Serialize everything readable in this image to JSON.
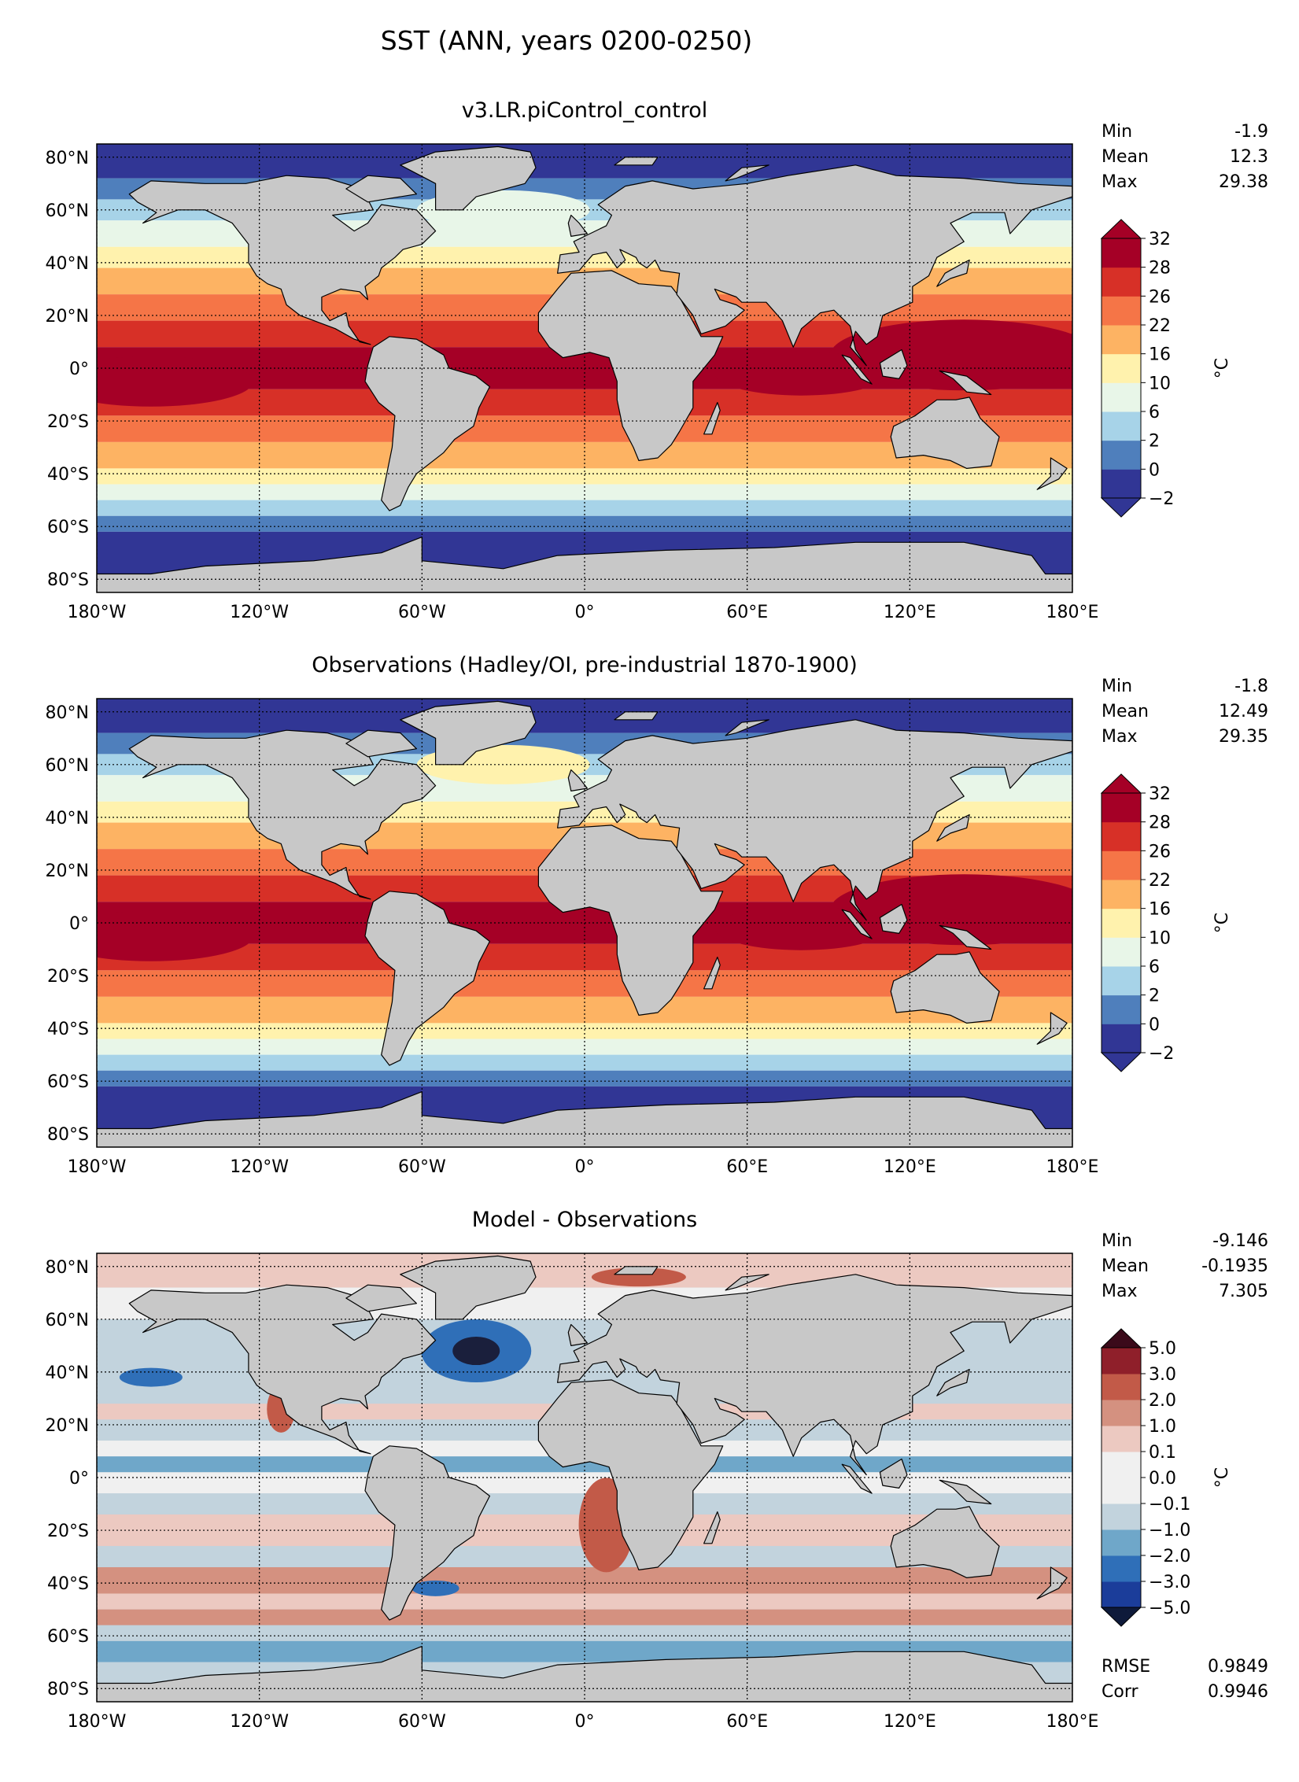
{
  "suptitle": "SST (ANN, years 0200-0250)",
  "axes": {
    "lon_ticks": [
      "180°W",
      "120°W",
      "60°W",
      "0°",
      "60°E",
      "120°E",
      "180°E"
    ],
    "lat_ticks": [
      "80°N",
      "60°N",
      "40°N",
      "20°N",
      "0°",
      "20°S",
      "40°S",
      "60°S",
      "80°S"
    ],
    "lon_values": [
      -180,
      -120,
      -60,
      0,
      60,
      120,
      180
    ],
    "lat_values": [
      80,
      60,
      40,
      20,
      0,
      -20,
      -40,
      -60,
      -80
    ]
  },
  "panels": [
    {
      "title": "v3.LR.piControl_control",
      "stats": [
        {
          "label": "Min",
          "value": "-1.9"
        },
        {
          "label": "Mean",
          "value": "12.3"
        },
        {
          "label": "Max",
          "value": "29.38"
        }
      ],
      "colorbar": {
        "unit": "°C",
        "levels": [
          "−2",
          "0",
          "2",
          "6",
          "10",
          "16",
          "22",
          "26",
          "28",
          "32"
        ],
        "colors": [
          "#313695",
          "#4f7fbc",
          "#a7d3e8",
          "#e8f6e8",
          "#fff2ad",
          "#fdb363",
          "#f57547",
          "#d73027",
          "#a50026"
        ]
      }
    },
    {
      "title": "Observations (Hadley/OI, pre-industrial 1870-1900)",
      "stats": [
        {
          "label": "Min",
          "value": "-1.8"
        },
        {
          "label": "Mean",
          "value": "12.49"
        },
        {
          "label": "Max",
          "value": "29.35"
        }
      ],
      "colorbar": {
        "unit": "°C",
        "levels": [
          "−2",
          "0",
          "2",
          "6",
          "10",
          "16",
          "22",
          "26",
          "28",
          "32"
        ],
        "colors": [
          "#313695",
          "#4f7fbc",
          "#a7d3e8",
          "#e8f6e8",
          "#fff2ad",
          "#fdb363",
          "#f57547",
          "#d73027",
          "#a50026"
        ]
      }
    },
    {
      "title": "Model - Observations",
      "stats": [
        {
          "label": "Min",
          "value": "-9.146"
        },
        {
          "label": "Mean",
          "value": "-0.1935"
        },
        {
          "label": "Max",
          "value": "7.305"
        }
      ],
      "extra_stats": [
        {
          "label": "RMSE",
          "value": "0.9849"
        },
        {
          "label": "Corr",
          "value": "0.9946"
        }
      ],
      "colorbar": {
        "unit": "°C",
        "levels": [
          "−5.0",
          "−3.0",
          "−2.0",
          "−1.0",
          "−0.1",
          "0.0",
          "0.1",
          "1.0",
          "2.0",
          "3.0",
          "5.0"
        ],
        "colors": [
          "#1b3d9a",
          "#2f6fb8",
          "#6fa7c9",
          "#c2d3dd",
          "#f0f0f0",
          "#f0f0f0",
          "#ecc9c1",
          "#d49180",
          "#c25a48",
          "#8f1f2a"
        ]
      }
    }
  ],
  "colors": {
    "land": "#c8c8c8",
    "coastline": "#000000",
    "grid": "#000000",
    "cold_ocean": "#313695",
    "warm_ocean": "#a50026"
  }
}
